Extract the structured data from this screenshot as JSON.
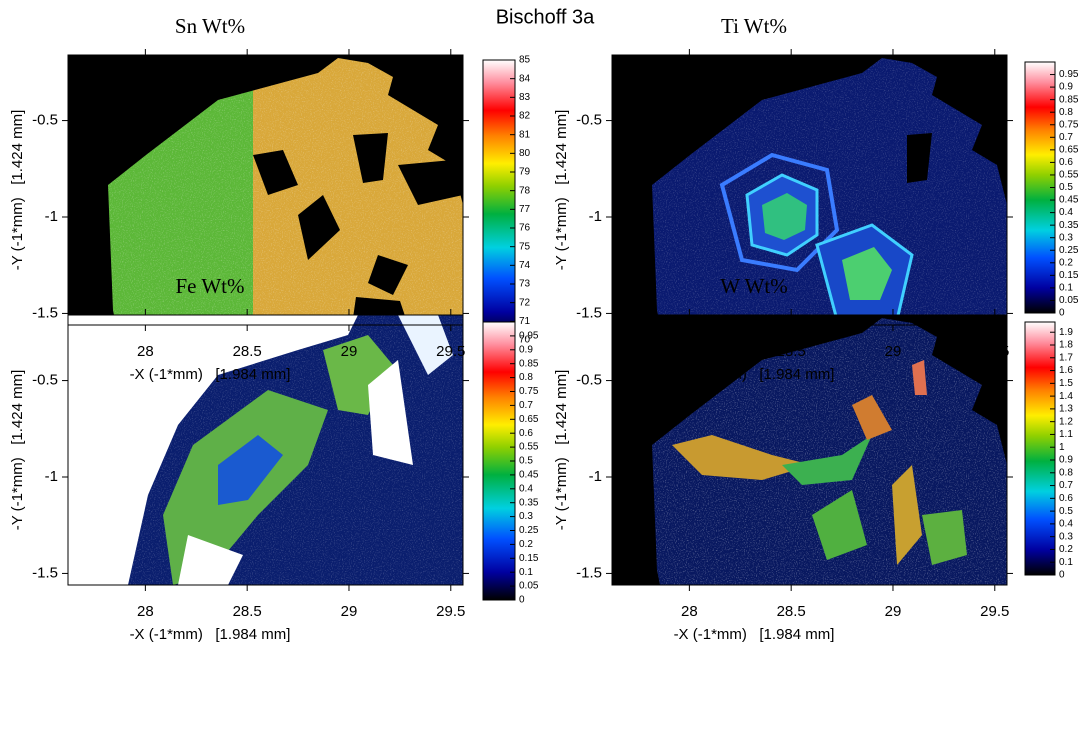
{
  "title": "Bischoff 3a",
  "chart_data": [
    {
      "type": "heatmap",
      "title": "Sn Wt%",
      "xlabel": "-X (-1*mm)   [1.984 mm]",
      "ylabel": "-Y (-1*mm)   [1.424 mm]",
      "xlim": [
        27.62,
        29.56
      ],
      "ylim": [
        -1.56,
        -0.16
      ],
      "xticks": [
        28,
        28.5,
        29,
        29.5
      ],
      "yticks": [
        -0.5,
        -1,
        -1.5
      ],
      "zlim": [
        70,
        85
      ],
      "zticks": [
        70,
        71,
        72,
        73,
        74,
        75,
        76,
        77,
        78,
        79,
        80,
        81,
        82,
        83,
        84,
        85
      ]
    },
    {
      "type": "heatmap",
      "title": "Ti Wt%",
      "xlabel": "-X (-1*mm)   [1.984 mm]",
      "ylabel": "-Y (-1*mm)   [1.424 mm]",
      "xlim": [
        27.62,
        29.56
      ],
      "ylim": [
        -1.56,
        -0.16
      ],
      "xticks": [
        28,
        28.5,
        29,
        29.5
      ],
      "yticks": [
        -0.5,
        -1,
        -1.5
      ],
      "zlim": [
        0,
        1
      ],
      "zticks": [
        0,
        0.05,
        0.1,
        0.15,
        0.2,
        0.25,
        0.3,
        0.35,
        0.4,
        0.45,
        0.5,
        0.55,
        0.6,
        0.65,
        0.7,
        0.75,
        0.8,
        0.85,
        0.9,
        0.95
      ]
    },
    {
      "type": "heatmap",
      "title": "Fe Wt%",
      "xlabel": "-X (-1*mm)   [1.984 mm]",
      "ylabel": "-Y (-1*mm)   [1.424 mm]",
      "xlim": [
        27.62,
        29.56
      ],
      "ylim": [
        -1.56,
        -0.16
      ],
      "xticks": [
        28,
        28.5,
        29,
        29.5
      ],
      "yticks": [
        -0.5,
        -1,
        -1.5
      ],
      "zlim": [
        0,
        1
      ],
      "zticks": [
        0,
        0.05,
        0.1,
        0.15,
        0.2,
        0.25,
        0.3,
        0.35,
        0.4,
        0.45,
        0.5,
        0.55,
        0.6,
        0.65,
        0.7,
        0.75,
        0.8,
        0.85,
        0.9,
        0.95
      ]
    },
    {
      "type": "heatmap",
      "title": "W Wt%",
      "xlabel": "-X (-1*mm)   [1.984 mm]",
      "ylabel": "-Y (-1*mm)   [1.424 mm]",
      "xlim": [
        27.62,
        29.56
      ],
      "ylim": [
        -1.56,
        -0.16
      ],
      "xticks": [
        28,
        28.5,
        29,
        29.5
      ],
      "yticks": [
        -0.5,
        -1,
        -1.5
      ],
      "zlim": [
        0,
        1.98
      ],
      "zticks": [
        0,
        0.1,
        0.2,
        0.3,
        0.4,
        0.5,
        0.6,
        0.7,
        0.8,
        0.9,
        1,
        1.1,
        1.2,
        1.3,
        1.4,
        1.5,
        1.6,
        1.7,
        1.8,
        1.9
      ]
    }
  ]
}
